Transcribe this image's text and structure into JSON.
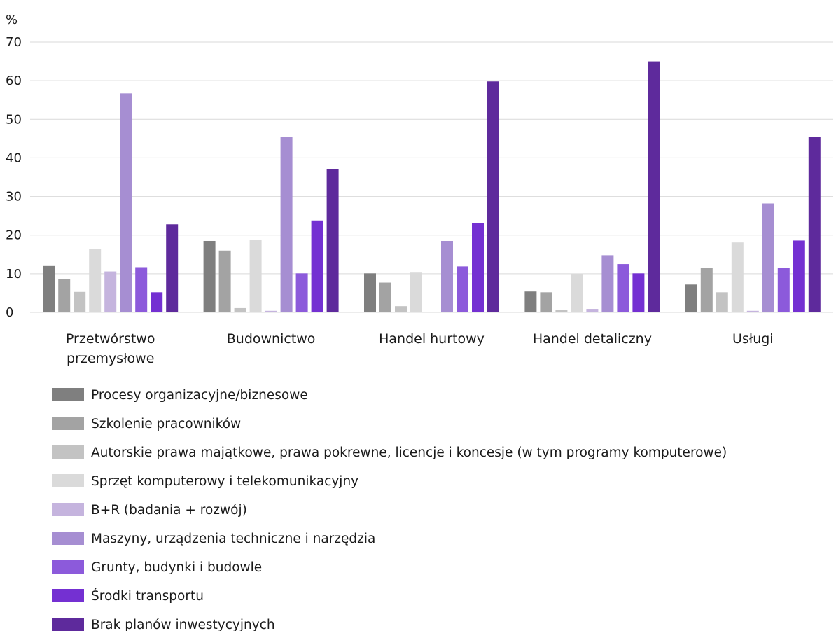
{
  "chart_data": {
    "type": "bar",
    "ylabel": "%",
    "ylim": [
      0,
      70
    ],
    "yticks": [
      "0",
      "10",
      "20",
      "30",
      "40",
      "50",
      "60",
      "70"
    ],
    "grid": true,
    "legend_position": "bottom",
    "categories": [
      [
        "Przetwórstwo",
        "przemysłowe"
      ],
      [
        "Budownictwo"
      ],
      [
        "Handel hurtowy"
      ],
      [
        "Handel detaliczny"
      ],
      [
        "Usługi"
      ]
    ],
    "series": [
      {
        "name": "Procesy organizacyjne/biznesowe",
        "color": "#7f7f7f",
        "values": [
          12.0,
          18.5,
          10.1,
          5.4,
          7.2
        ]
      },
      {
        "name": "Szkolenie pracowników",
        "color": "#a3a3a3",
        "values": [
          8.7,
          16.0,
          7.7,
          5.2,
          11.6
        ]
      },
      {
        "name": "Autorskie prawa majątkowe, prawa pokrewne, licencje i koncesje (w tym programy komputerowe)",
        "color": "#c3c3c3",
        "values": [
          5.3,
          1.1,
          1.6,
          0.6,
          5.2
        ]
      },
      {
        "name": "Sprzęt komputerowy i telekomunikacyjny",
        "color": "#dadada",
        "values": [
          16.4,
          18.8,
          10.3,
          10.0,
          18.1
        ]
      },
      {
        "name": "B+R (badania + rozwój)",
        "color": "#c5b4de",
        "values": [
          10.6,
          0.4,
          0.0,
          0.9,
          0.4
        ]
      },
      {
        "name": "Maszyny, urządzenia techniczne i narzędzia",
        "color": "#a68ed2",
        "values": [
          56.7,
          45.5,
          18.5,
          14.8,
          28.2
        ]
      },
      {
        "name": "Grunty, budynki i budowle",
        "color": "#8c5adb",
        "values": [
          11.7,
          10.1,
          11.9,
          12.5,
          11.6
        ]
      },
      {
        "name": "Środki transportu",
        "color": "#7430d2",
        "values": [
          5.2,
          23.8,
          23.2,
          10.1,
          18.6
        ]
      },
      {
        "name": "Brak planów inwestycyjnych",
        "color": "#5e2a9c",
        "values": [
          22.8,
          37.0,
          59.8,
          65.0,
          45.5
        ]
      }
    ]
  }
}
